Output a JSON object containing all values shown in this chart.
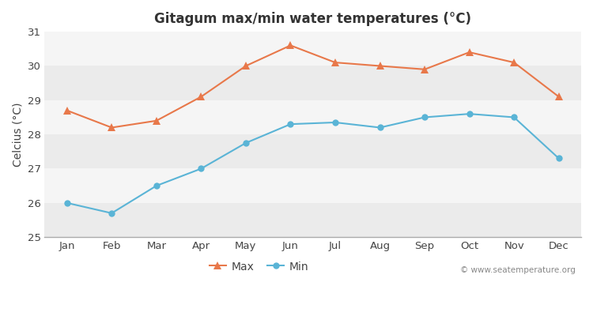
{
  "title": "Gitagum max/min water temperatures (°C)",
  "ylabel": "Celcius (°C)",
  "months": [
    "Jan",
    "Feb",
    "Mar",
    "Apr",
    "May",
    "Jun",
    "Jul",
    "Aug",
    "Sep",
    "Oct",
    "Nov",
    "Dec"
  ],
  "max_temps": [
    28.7,
    28.2,
    28.4,
    29.1,
    30.0,
    30.6,
    30.1,
    30.0,
    29.9,
    30.4,
    30.1,
    29.1
  ],
  "min_temps": [
    26.0,
    25.7,
    26.5,
    27.0,
    27.75,
    28.3,
    28.35,
    28.2,
    28.5,
    28.6,
    28.5,
    27.3
  ],
  "max_color": "#e8784a",
  "min_color": "#5ab4d6",
  "fig_bg_color": "#ffffff",
  "plot_bg_color": "#f0f0f0",
  "band_color_light": "#f5f5f5",
  "band_color_dark": "#e8e8e8",
  "grid_color": "#ffffff",
  "ylim": [
    25,
    31
  ],
  "yticks": [
    25,
    26,
    27,
    28,
    29,
    30,
    31
  ],
  "watermark": "© www.seatemperature.org",
  "legend_labels": [
    "Max",
    "Min"
  ]
}
